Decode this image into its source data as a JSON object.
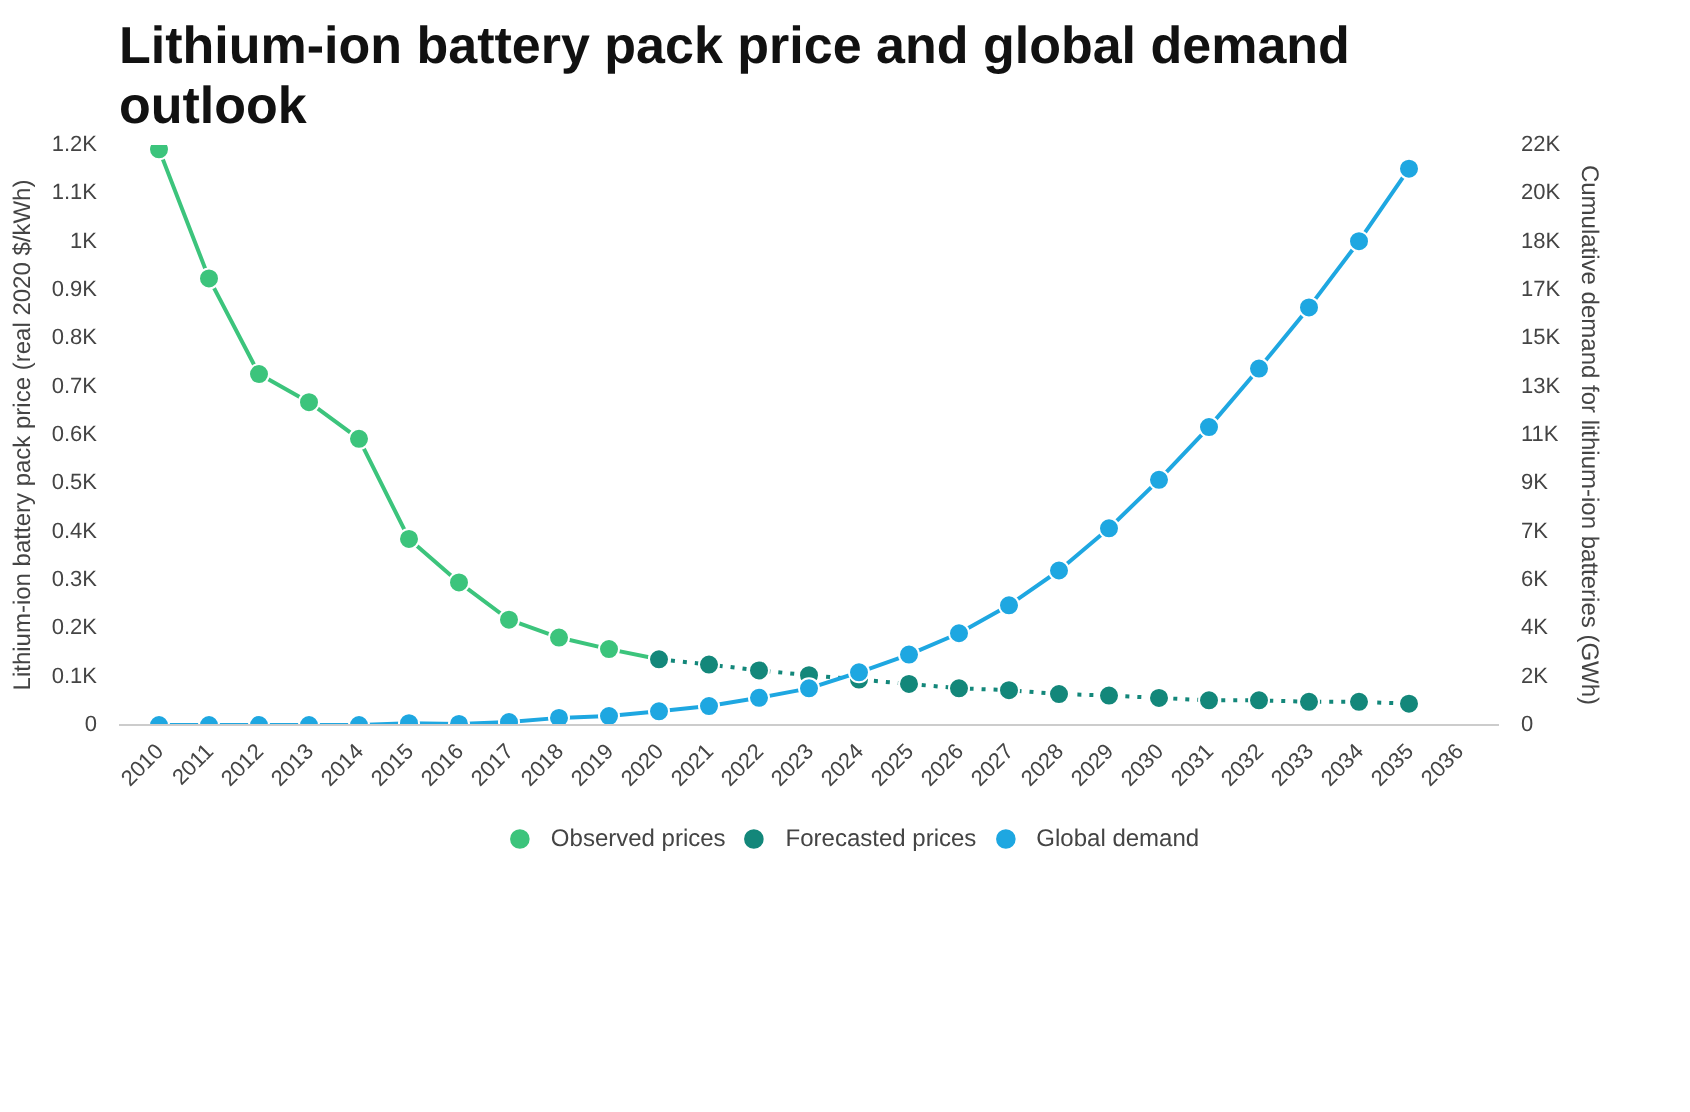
{
  "chart_data": {
    "type": "line",
    "title": "Lithium-ion battery pack price and global demand outlook",
    "ylabel": "Lithium-ion battery pack price (real 2020 $/kWh)",
    "y2label": "Cumulative demand for lithium-ion batteries (GWh)",
    "categories": [
      "2010",
      "2011",
      "2012",
      "2013",
      "2014",
      "2015",
      "2016",
      "2017",
      "2018",
      "2019",
      "2020",
      "2021",
      "2022",
      "2023",
      "2024",
      "2025",
      "2026",
      "2027",
      "2028",
      "2029",
      "2030",
      "2031",
      "2032",
      "2033",
      "2034",
      "2035",
      "2036"
    ],
    "ylim": [
      0,
      1200
    ],
    "yticks": [
      0,
      {
        "value": 100,
        "label": "0.1K"
      },
      {
        "value": 200,
        "label": "0.2K"
      },
      {
        "value": 300,
        "label": "0.3K"
      },
      {
        "value": 400,
        "label": "0.4K"
      },
      {
        "value": 500,
        "label": "0.5K"
      },
      {
        "value": 600,
        "label": "0.6K"
      },
      {
        "value": 700,
        "label": "0.7K"
      },
      {
        "value": 800,
        "label": "0.8K"
      },
      {
        "value": 900,
        "label": "0.9K"
      },
      {
        "value": 1000,
        "label": "1K"
      },
      {
        "value": 1100,
        "label": "1.1K"
      },
      {
        "value": 1200,
        "label": "1.2K"
      }
    ],
    "y2lim": [
      0,
      22000
    ],
    "y2ticks": [
      0,
      {
        "value": 1833.33,
        "label": "2K"
      },
      {
        "value": 3666.67,
        "label": "4K"
      },
      {
        "value": 5500,
        "label": "6K"
      },
      {
        "value": 7333.33,
        "label": "7K"
      },
      {
        "value": 9166.67,
        "label": "9K"
      },
      {
        "value": 11000,
        "label": "11K"
      },
      {
        "value": 12833.33,
        "label": "13K"
      },
      {
        "value": 14666.67,
        "label": "15K"
      },
      {
        "value": 16500,
        "label": "17K"
      },
      {
        "value": 18333.33,
        "label": "18K"
      },
      {
        "value": 20166.67,
        "label": "20K"
      },
      {
        "value": 22000,
        "label": "22K"
      }
    ],
    "marker": "circle",
    "grid": false,
    "legend": "bottom",
    "series": [
      {
        "name": "Observed prices",
        "color": "#3cc47c",
        "line_style": "solid",
        "values": [
          1191,
          924,
          726,
          668,
          592,
          385,
          295,
          218,
          181,
          157,
          136,
          null,
          null,
          null,
          null,
          null,
          null,
          null,
          null,
          null,
          null,
          null,
          null,
          null,
          null,
          null,
          null
        ]
      },
      {
        "name": "Forecasted prices",
        "color": "#13877a",
        "line_style": "dotted",
        "values": [
          null,
          null,
          null,
          null,
          null,
          null,
          null,
          null,
          null,
          null,
          136,
          125,
          113,
          103,
          94,
          85,
          76,
          72,
          64,
          61,
          56,
          51,
          51,
          48,
          48,
          44,
          null
        ]
      },
      {
        "name": "Global demand",
        "color": "#1ea7e1",
        "line_style": "solid",
        "axis": "y2",
        "values": [
          0,
          0,
          0,
          0,
          0,
          70,
          40,
          110,
          270,
          340,
          520,
          720,
          1030,
          1390,
          2000,
          2670,
          3480,
          4540,
          5860,
          7460,
          9300,
          11300,
          13520,
          15840,
          18350,
          21100,
          null
        ]
      }
    ]
  }
}
